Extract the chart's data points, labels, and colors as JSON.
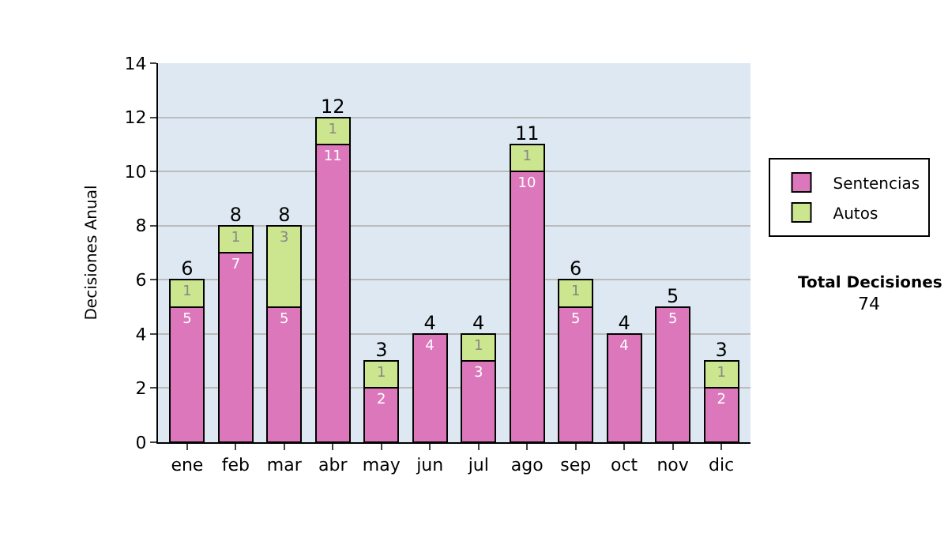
{
  "chart_data": {
    "type": "bar",
    "stacked": true,
    "ylabel": "Decisiones Anual",
    "categories": [
      "ene",
      "feb",
      "mar",
      "abr",
      "may",
      "jun",
      "jul",
      "ago",
      "sep",
      "oct",
      "nov",
      "dic"
    ],
    "series": [
      {
        "name": "Sentencias",
        "color": "#dd77bb",
        "values": [
          5,
          7,
          5,
          11,
          2,
          4,
          3,
          10,
          5,
          4,
          5,
          2
        ],
        "value_labels": [
          "5",
          "7",
          "5",
          "11",
          "2",
          "4",
          "3",
          "10",
          "5",
          "4",
          "5",
          "2"
        ]
      },
      {
        "name": "Autos",
        "color": "#cce58f",
        "values": [
          1,
          1,
          3,
          1,
          1,
          0,
          1,
          1,
          1,
          0,
          0,
          1
        ],
        "value_labels": [
          "1",
          "1",
          "3",
          "1",
          "1",
          null,
          "1",
          "1",
          "1",
          null,
          null,
          "1"
        ]
      }
    ],
    "totals": [
      "6",
      "8",
      "8",
      "12",
      "3",
      "4",
      "4",
      "11",
      "6",
      "4",
      "5",
      "3"
    ],
    "ylim": [
      0,
      14
    ],
    "yticks": [
      0,
      2,
      4,
      6,
      8,
      10,
      12,
      14
    ],
    "grid": "y",
    "legend": "right",
    "annotations": [
      "Total Decisiones",
      "74"
    ]
  }
}
